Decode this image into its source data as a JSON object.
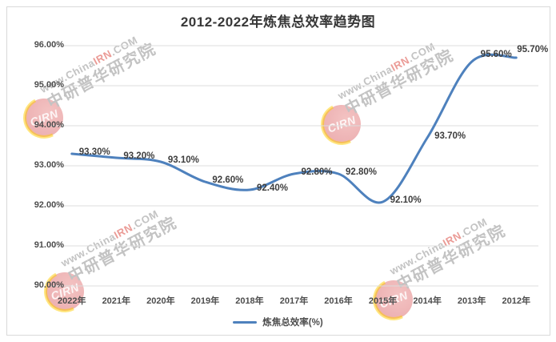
{
  "title": "2012-2022年炼焦总效率趋势图",
  "chart_data": {
    "type": "line",
    "title": "2012-2022年炼焦总效率趋势图",
    "categories": [
      "2022年",
      "2021年",
      "2020年",
      "2019年",
      "2018年",
      "2017年",
      "2016年",
      "2015年",
      "2014年",
      "2013年",
      "2012年"
    ],
    "series": [
      {
        "name": "炼焦总效率(%)",
        "values": [
          93.3,
          93.2,
          93.1,
          92.6,
          92.4,
          92.8,
          92.8,
          92.1,
          93.7,
          95.6,
          95.7
        ]
      }
    ],
    "data_labels": [
      "93.30%",
      "93.20%",
      "93.10%",
      "92.60%",
      "92.40%",
      "92.80%",
      "92.80%",
      "92.10%",
      "93.70%",
      "95.60%",
      "95.70%"
    ],
    "y_tick_labels": [
      "96.00%",
      "95.00%",
      "94.00%",
      "93.00%",
      "92.00%",
      "91.00%",
      "90.00%"
    ],
    "ylim": [
      90,
      96
    ],
    "grid": true,
    "smooth": true,
    "legend_position": "bottom",
    "line_color": "#4e81bd",
    "grid_color": "#dcdcdc"
  },
  "legend": {
    "label": "炼焦总效率(%)"
  },
  "watermark": {
    "logo_text": "CIRN",
    "url_prefix": "www.China",
    "url_accent": "IRN",
    "url_suffix": ".COM",
    "org_text": "中研普华研究院",
    "gray": "#c3c3c3",
    "accent": "#eb9b96",
    "logo_red_center": "rgba(224,98,96,0.38)",
    "logo_red_edge": "rgba(200,30,38,0.38)",
    "logo_yellow": "rgba(255,205,0,0.5)"
  }
}
